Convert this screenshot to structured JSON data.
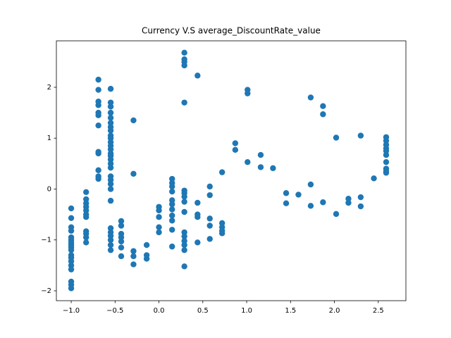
{
  "chart_data": {
    "type": "scatter",
    "title": "Currency V.S average_DiscountRate_value",
    "color": "#1f77b4",
    "grid": false,
    "xlim": [
      -1.169,
      2.815
    ],
    "ylim": [
      -2.194,
      2.913
    ],
    "xticks": [
      {
        "value": -1,
        "label": "−1.0"
      },
      {
        "value": -0.5,
        "label": "−0.5"
      },
      {
        "value": 0,
        "label": "0.0"
      },
      {
        "value": 0.5,
        "label": "0.5"
      },
      {
        "value": 1,
        "label": "1.0"
      },
      {
        "value": 1.5,
        "label": "1.5"
      },
      {
        "value": 2,
        "label": "2.0"
      },
      {
        "value": 2.5,
        "label": "2.5"
      }
    ],
    "yticks": [
      {
        "value": -2,
        "label": "−2"
      },
      {
        "value": -1,
        "label": "−1"
      },
      0,
      1,
      2
    ],
    "x": [
      -1,
      -1,
      -1,
      -1,
      -1,
      -1,
      -1,
      -1,
      -1,
      -1,
      -1,
      -1,
      -1,
      -1,
      -1,
      -1,
      -1,
      -1,
      -0.83,
      -0.83,
      -0.83,
      -0.83,
      -0.83,
      -0.83,
      -0.83,
      -0.83,
      -0.83,
      -0.83,
      -0.83,
      -0.69,
      -0.69,
      -0.69,
      -0.69,
      -0.69,
      -0.69,
      -0.69,
      -0.69,
      -0.69,
      -0.69,
      -0.69,
      -0.69,
      -0.55,
      -0.55,
      -0.55,
      -0.55,
      -0.55,
      -0.55,
      -0.55,
      -0.55,
      -0.55,
      -0.55,
      -0.55,
      -0.55,
      -0.55,
      -0.55,
      -0.55,
      -0.55,
      -0.55,
      -0.55,
      -0.55,
      -0.55,
      -0.55,
      -0.55,
      -0.55,
      -0.55,
      -0.55,
      -0.55,
      -0.55,
      -0.55,
      -0.55,
      -0.43,
      -0.43,
      -0.43,
      -0.43,
      -0.43,
      -0.43,
      -0.43,
      -0.29,
      -0.29,
      -0.29,
      -0.29,
      -0.29,
      -0.14,
      -0.14,
      -0.14,
      0,
      0,
      0,
      0,
      0,
      0.15,
      0.15,
      0.15,
      0.15,
      0.15,
      0.15,
      0.15,
      0.15,
      0.15,
      0.15,
      0.15,
      0.29,
      0.29,
      0.29,
      0.29,
      0.29,
      0.29,
      0.29,
      0.29,
      0.29,
      0.29,
      0.29,
      0.29,
      0.29,
      0.29,
      0.29,
      0.29,
      0.44,
      0.44,
      0.44,
      0.44,
      0.44,
      0.58,
      0.58,
      0.58,
      0.58,
      0.58,
      0.72,
      0.72,
      0.72,
      0.72,
      0.72,
      0.87,
      0.87,
      1.01,
      1.01,
      1.01,
      1.16,
      1.16,
      1.3,
      1.45,
      1.45,
      1.59,
      1.73,
      1.73,
      1.73,
      1.87,
      1.87,
      1.87,
      2.02,
      2.02,
      2.16,
      2.16,
      2.3,
      2.3,
      2.3,
      2.45,
      2.59,
      2.59,
      2.59,
      2.59,
      2.59,
      2.59,
      2.59,
      2.59,
      2.59,
      2.59
    ],
    "values": [
      -0.38,
      -0.57,
      -0.75,
      -0.82,
      -0.95,
      -1.0,
      -1.05,
      -1.1,
      -1.15,
      -1.2,
      -1.3,
      -1.35,
      -1.42,
      -1.5,
      -1.58,
      -1.82,
      -1.88,
      -1.95,
      -0.06,
      -0.2,
      -0.28,
      -0.35,
      -0.42,
      -0.5,
      -0.55,
      -0.83,
      -0.88,
      -0.95,
      -1.05,
      2.15,
      1.95,
      1.72,
      1.65,
      1.5,
      1.45,
      1.25,
      0.73,
      0.7,
      0.37,
      0.25,
      0.2,
      1.97,
      1.7,
      1.62,
      1.5,
      1.4,
      1.3,
      1.22,
      1.15,
      1.05,
      1.0,
      0.92,
      0.85,
      0.78,
      0.7,
      0.65,
      0.58,
      0.5,
      0.42,
      0.25,
      0.18,
      0.1,
      0.0,
      -0.23,
      -0.77,
      -0.85,
      -0.92,
      -1.0,
      -1.1,
      -1.2,
      -0.63,
      -0.72,
      -0.88,
      -0.95,
      -1.03,
      -1.15,
      -1.32,
      1.35,
      0.3,
      -1.22,
      -1.32,
      -1.48,
      -1.1,
      -1.3,
      -1.37,
      -0.35,
      -0.42,
      -0.55,
      -0.75,
      -0.85,
      0.2,
      0.12,
      0.05,
      -0.05,
      -0.22,
      -0.3,
      -0.4,
      -0.52,
      -0.62,
      -0.8,
      -1.13,
      2.68,
      2.55,
      2.5,
      2.43,
      1.7,
      -0.03,
      -0.08,
      -0.15,
      -0.25,
      -0.45,
      -0.85,
      -0.93,
      -1.02,
      -1.1,
      -1.2,
      -1.52,
      2.23,
      -0.27,
      -0.5,
      -0.55,
      -1.05,
      0.05,
      -0.12,
      -0.58,
      -0.72,
      -0.98,
      0.33,
      -0.67,
      -0.75,
      -0.82,
      -0.87,
      0.9,
      0.77,
      1.95,
      1.88,
      0.53,
      0.67,
      0.43,
      0.41,
      -0.08,
      -0.28,
      -0.11,
      1.8,
      0.09,
      -0.33,
      1.63,
      1.47,
      -0.26,
      1.01,
      -0.49,
      -0.19,
      -0.27,
      1.05,
      -0.16,
      -0.34,
      0.21,
      1.02,
      0.95,
      0.87,
      0.8,
      0.75,
      0.67,
      0.53,
      0.4,
      0.35,
      0.32
    ]
  }
}
